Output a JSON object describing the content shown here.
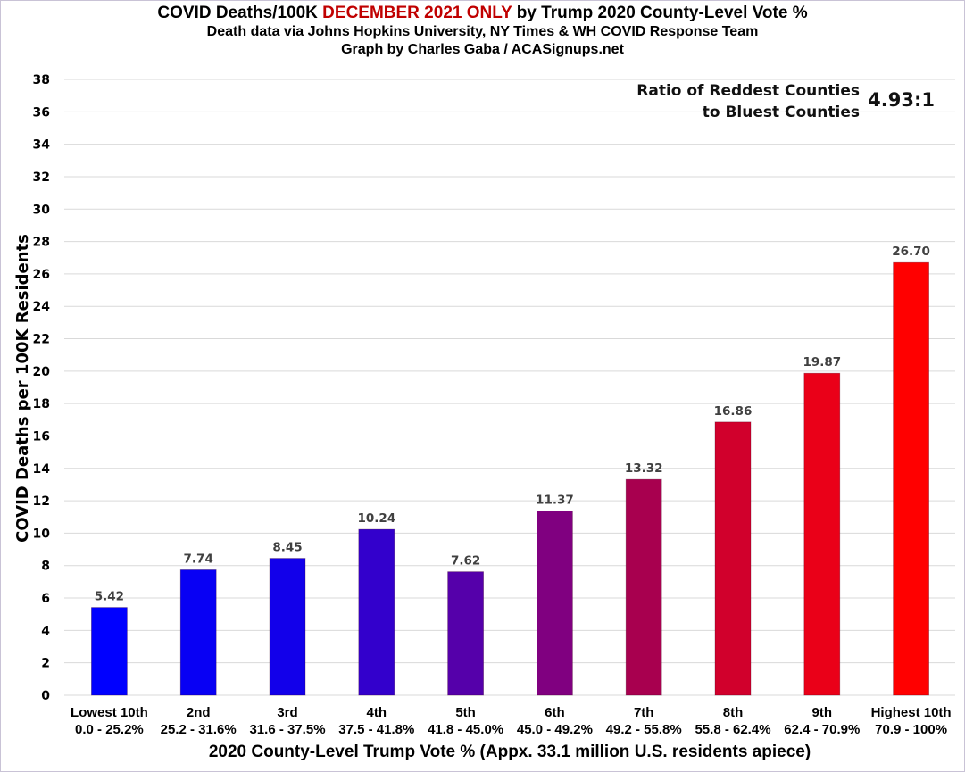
{
  "chart_data": {
    "type": "bar",
    "title": {
      "prefix": "COVID Deaths/100K ",
      "highlight": "DECEMBER 2021 ONLY",
      "suffix": " by Trump 2020 County-Level Vote %"
    },
    "subtitle_1": "Death data via Johns Hopkins University, NY Times & WH COVID Response Team",
    "subtitle_2": "Graph by Charles Gaba / ACASignups.net",
    "xlabel": "2020 County-Level Trump Vote % (Appx. 33.1 million U.S. residents apiece)",
    "ylabel": "COVID Deaths per 100K Residents",
    "ylim": [
      0,
      38
    ],
    "ytick_step": 2,
    "yticks": [
      "0",
      "2",
      "4",
      "6",
      "8",
      "10",
      "12",
      "14",
      "16",
      "18",
      "20",
      "22",
      "24",
      "26",
      "28",
      "30",
      "32",
      "34",
      "36",
      "38"
    ],
    "grid": true,
    "categories": [
      {
        "name": "Lowest 10th",
        "range": "0.0 - 25.2%"
      },
      {
        "name": "2nd",
        "range": "25.2 - 31.6%"
      },
      {
        "name": "3rd",
        "range": "31.6 - 37.5%"
      },
      {
        "name": "4th",
        "range": "37.5 - 41.8%"
      },
      {
        "name": "5th",
        "range": "41.8 - 45.0%"
      },
      {
        "name": "6th",
        "range": "45.0 - 49.2%"
      },
      {
        "name": "7th",
        "range": "49.2 - 55.8%"
      },
      {
        "name": "8th",
        "range": "55.8 - 62.4%"
      },
      {
        "name": "9th",
        "range": "62.4 - 70.9%"
      },
      {
        "name": "Highest 10th",
        "range": "70.9 - 100%"
      }
    ],
    "values": [
      5.42,
      7.74,
      8.45,
      10.24,
      7.62,
      11.37,
      13.32,
      16.86,
      19.87,
      26.7
    ],
    "value_labels": [
      "5.42",
      "7.74",
      "8.45",
      "10.24",
      "7.62",
      "11.37",
      "13.32",
      "16.86",
      "19.87",
      "26.70"
    ],
    "bar_colors": [
      "#0000ff",
      "#0800f4",
      "#1200ea",
      "#3300cc",
      "#5500aa",
      "#800080",
      "#a8004f",
      "#d1002c",
      "#ea0018",
      "#ff0000"
    ],
    "annotation": {
      "line1": "Ratio of Reddest Counties",
      "line2": "to Bluest Counties",
      "value": "4.93:1",
      "position": "top-right"
    },
    "title_highlight_color": "#c00000"
  }
}
